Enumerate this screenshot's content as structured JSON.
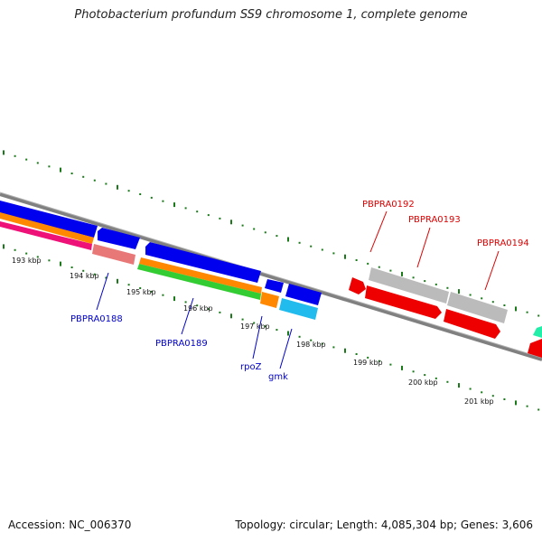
{
  "title": "Photobacterium profundum SS9 chromosome 1, complete genome",
  "footer": {
    "accession": "Accession: NC_006370",
    "summary": "Topology: circular; Length: 4,085,304 bp; Genes: 3,606"
  },
  "colors": {
    "backbone": "#808080",
    "tick": "#1a7a1a",
    "label_blue": "#0000cc",
    "label_red": "#dd0000"
  },
  "scale_ticks": [
    "193 kbp",
    "194 kbp",
    "195 kbp",
    "196 kbp",
    "197 kbp",
    "198 kbp",
    "199 kbp",
    "200 kbp",
    "201 kbp"
  ],
  "gene_labels": [
    {
      "text": "PBPRA0188",
      "color": "blue"
    },
    {
      "text": "PBPRA0189",
      "color": "blue"
    },
    {
      "text": "rpoZ",
      "color": "blue"
    },
    {
      "text": "gmk",
      "color": "blue"
    },
    {
      "text": "PBPRA0192",
      "color": "red"
    },
    {
      "text": "PBPRA0193",
      "color": "red"
    },
    {
      "text": "PBPRA0194",
      "color": "red"
    }
  ]
}
